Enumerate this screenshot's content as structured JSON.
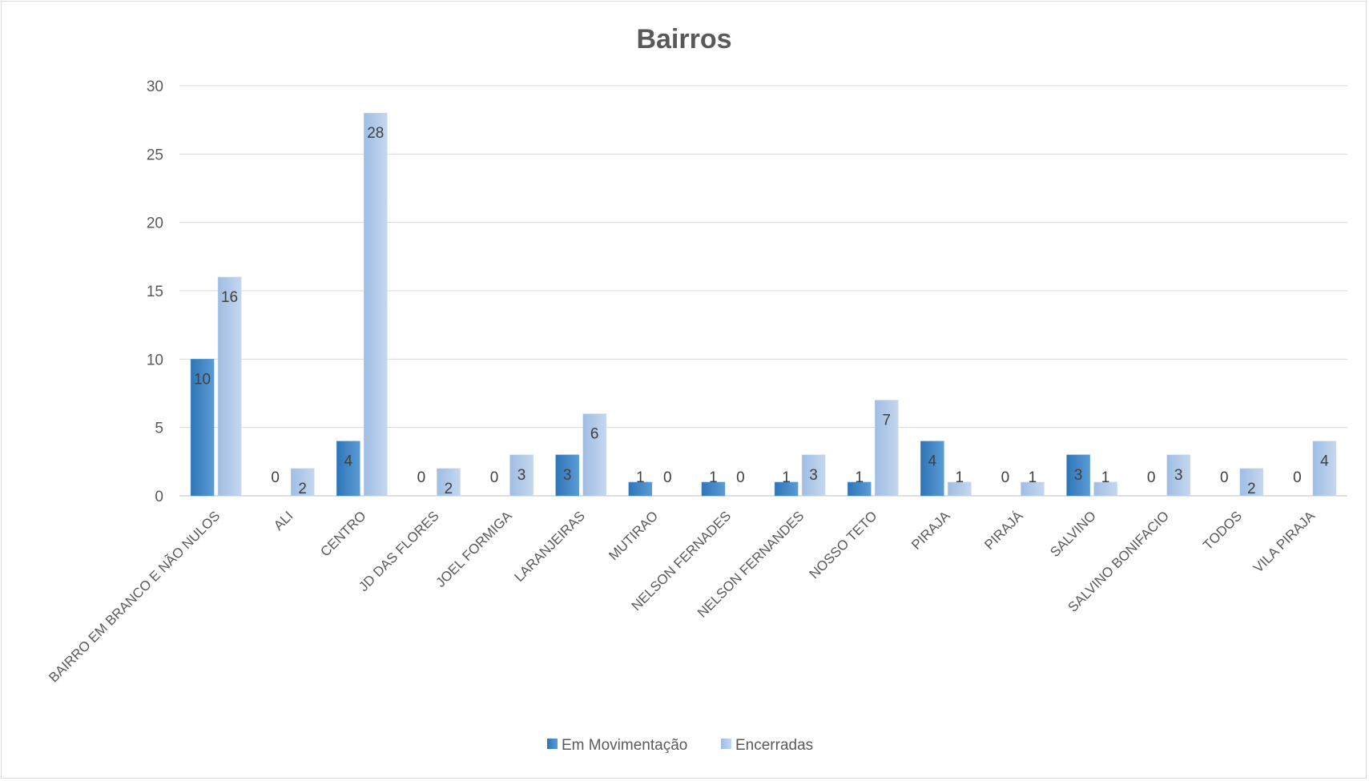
{
  "chart_data": {
    "type": "bar",
    "title": "Bairros",
    "xlabel": "",
    "ylabel": "",
    "ylim": [
      0,
      30
    ],
    "yticks": [
      0,
      5,
      10,
      15,
      20,
      25,
      30
    ],
    "grid": true,
    "legend_position": "bottom",
    "categories": [
      "BAIRRO EM BRANCO E NÃO NULOS",
      "ALI",
      "CENTRO",
      "JD DAS FLORES",
      "JOEL FORMIGA",
      "LARANJEIRAS",
      "MUTIRAO",
      "NELSON FERNADES",
      "NELSON FERNANDES",
      "NOSSO TETO",
      "PIRAJA",
      "PIRAJÁ",
      "SALVINO",
      "SALVINO BONIFACIO",
      "TODOS",
      "VILA PIRAJA"
    ],
    "series": [
      {
        "name": "Em Movimentação",
        "color": "#5b9bd5",
        "color_dark": "#2e75b6",
        "values": [
          10,
          0,
          4,
          0,
          0,
          3,
          1,
          1,
          1,
          1,
          4,
          0,
          3,
          0,
          0,
          0
        ]
      },
      {
        "name": "Encerradas",
        "color": "#c5d7ee",
        "color_dark": "#9fbde3",
        "values": [
          16,
          2,
          28,
          2,
          3,
          6,
          0,
          0,
          3,
          7,
          1,
          1,
          1,
          3,
          2,
          4
        ]
      }
    ]
  }
}
